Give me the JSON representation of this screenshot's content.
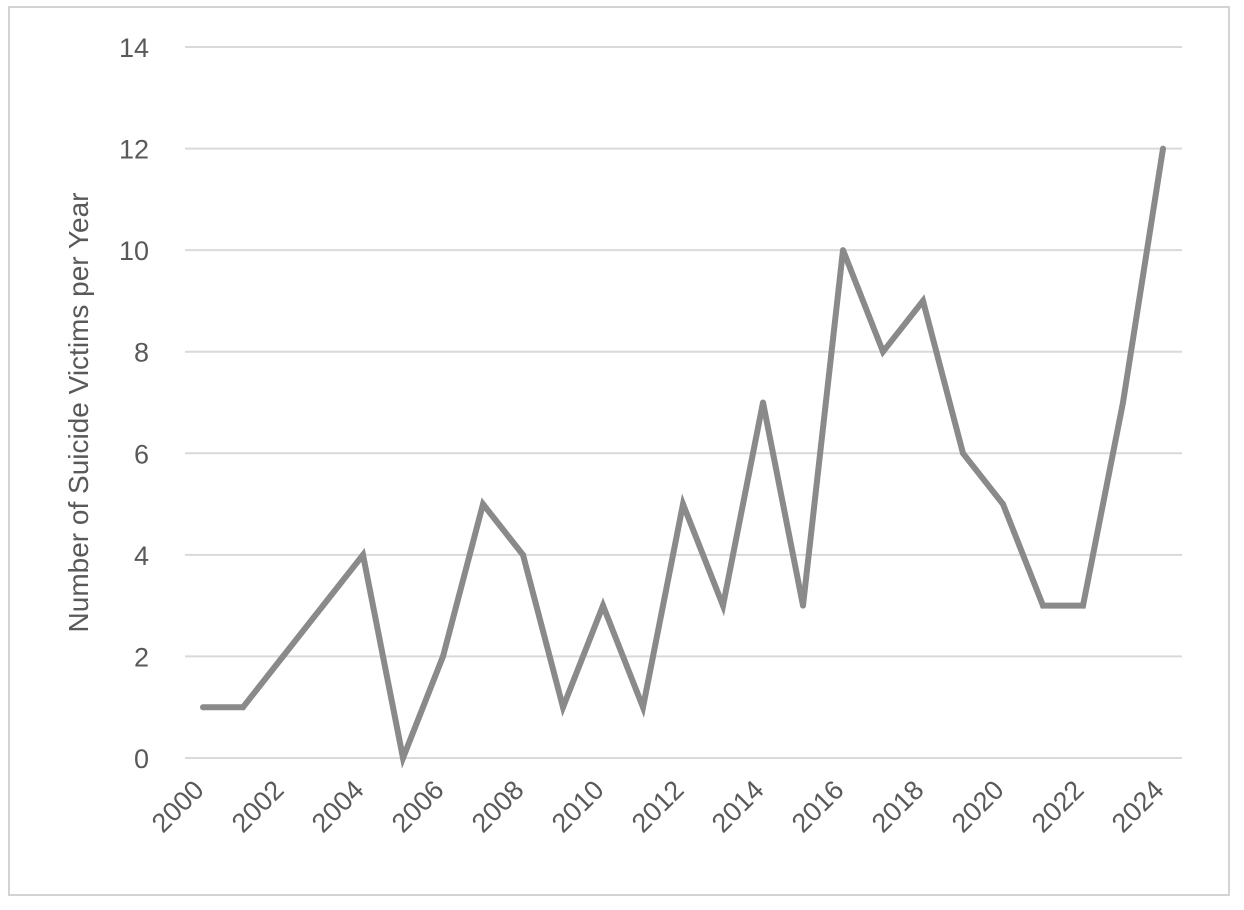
{
  "chart_data": {
    "type": "line",
    "title": "",
    "xlabel": "",
    "ylabel": "Number of Suicide Victims per Year",
    "x": [
      2000,
      2001,
      2002,
      2003,
      2004,
      2005,
      2006,
      2007,
      2008,
      2009,
      2010,
      2011,
      2012,
      2013,
      2014,
      2015,
      2016,
      2017,
      2018,
      2019,
      2020,
      2021,
      2022,
      2023,
      2024
    ],
    "series": [
      {
        "name": "",
        "values": [
          1,
          1,
          2,
          3,
          4,
          0,
          2,
          5,
          4,
          1,
          3,
          1,
          5,
          3,
          7,
          3,
          10,
          8,
          9,
          6,
          5,
          3,
          3,
          7,
          12
        ]
      }
    ],
    "xticks": [
      "2000",
      "2002",
      "2004",
      "2006",
      "2008",
      "2010",
      "2012",
      "2014",
      "2016",
      "2018",
      "2020",
      "2022",
      "2024"
    ],
    "yticks": [
      "0",
      "2",
      "4",
      "6",
      "8",
      "10",
      "12",
      "14"
    ],
    "xlim": [
      2000,
      2024
    ],
    "ylim": [
      0,
      14
    ],
    "grid": "horizontal",
    "legend": "none",
    "colors": {
      "line": "#8a8a8a",
      "grid": "#d9d9d9",
      "text": "#595959",
      "frame": "#d3d3d3"
    }
  }
}
